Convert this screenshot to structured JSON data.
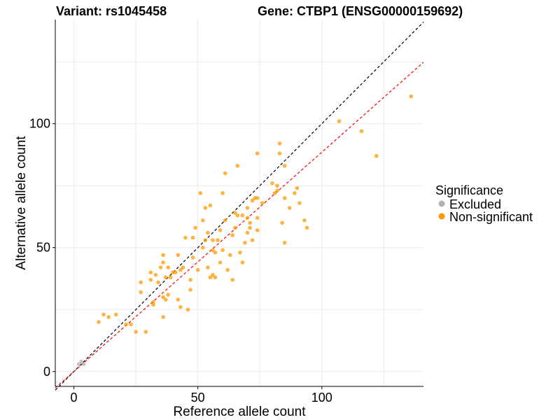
{
  "chart_data": {
    "type": "scatter",
    "title_left": "Variant: rs1045458",
    "title_right": "Gene: CTBP1 (ENSG00000159692)",
    "xlabel": "Reference allele count",
    "ylabel": "Alternative allele count",
    "xlim": [
      -7.5,
      141
    ],
    "ylim": [
      -6,
      142
    ],
    "x_ticks": [
      0,
      50,
      100
    ],
    "y_ticks": [
      0,
      50,
      100
    ],
    "grid": true,
    "legend": {
      "title": "Significance",
      "placement": "right",
      "entries": [
        {
          "label": "Excluded",
          "color": "#b3b3b3"
        },
        {
          "label": "Non-significant",
          "color": "#ff9900"
        }
      ]
    },
    "reference_lines": [
      {
        "name": "identity",
        "slope": 1.0,
        "intercept": 0,
        "color": "#000000",
        "dash": true
      },
      {
        "name": "fit",
        "slope": 0.885,
        "intercept": 0,
        "color": "#ff0000",
        "dash": true
      }
    ],
    "series": [
      {
        "name": "Excluded",
        "color": "#b3b3b3",
        "points": [
          [
            2,
            3
          ],
          [
            3,
            4
          ],
          [
            4,
            3
          ]
        ]
      },
      {
        "name": "Non-significant",
        "color": "#ff9900",
        "points": [
          [
            10,
            20
          ],
          [
            12,
            23
          ],
          [
            14,
            22
          ],
          [
            17,
            23
          ],
          [
            21,
            19
          ],
          [
            23,
            19
          ],
          [
            25,
            16
          ],
          [
            27,
            32
          ],
          [
            27,
            36
          ],
          [
            29,
            16
          ],
          [
            31,
            37
          ],
          [
            31,
            40
          ],
          [
            32,
            27
          ],
          [
            32,
            28
          ],
          [
            33,
            39
          ],
          [
            34,
            36
          ],
          [
            35,
            42
          ],
          [
            36,
            22
          ],
          [
            36,
            30
          ],
          [
            36,
            44
          ],
          [
            36,
            47
          ],
          [
            37,
            29
          ],
          [
            37,
            38
          ],
          [
            38,
            31
          ],
          [
            38,
            42
          ],
          [
            39,
            38
          ],
          [
            40,
            40
          ],
          [
            41,
            40
          ],
          [
            42,
            29
          ],
          [
            42,
            47
          ],
          [
            43,
            26
          ],
          [
            43,
            41
          ],
          [
            44,
            42
          ],
          [
            45,
            54
          ],
          [
            46,
            25
          ],
          [
            47,
            33
          ],
          [
            47,
            37
          ],
          [
            48,
            46
          ],
          [
            48,
            54
          ],
          [
            49,
            58
          ],
          [
            50,
            41
          ],
          [
            51,
            72
          ],
          [
            52,
            50
          ],
          [
            52,
            61
          ],
          [
            53,
            53
          ],
          [
            53,
            66
          ],
          [
            54,
            42
          ],
          [
            54,
            56
          ],
          [
            55,
            38
          ],
          [
            55,
            67
          ],
          [
            56,
            39
          ],
          [
            56,
            49
          ],
          [
            56,
            53
          ],
          [
            57,
            38
          ],
          [
            57,
            48
          ],
          [
            58,
            53
          ],
          [
            59,
            57
          ],
          [
            59,
            44
          ],
          [
            60,
            72
          ],
          [
            60,
            49
          ],
          [
            61,
            80
          ],
          [
            61,
            61
          ],
          [
            62,
            41
          ],
          [
            63,
            47
          ],
          [
            64,
            37
          ],
          [
            64,
            55
          ],
          [
            65,
            64
          ],
          [
            65,
            58
          ],
          [
            66,
            83
          ],
          [
            66,
            63
          ],
          [
            67,
            48
          ],
          [
            68,
            44
          ],
          [
            68,
            63
          ],
          [
            69,
            52
          ],
          [
            70,
            56
          ],
          [
            70,
            62
          ],
          [
            70,
            66
          ],
          [
            71,
            58
          ],
          [
            71,
            60
          ],
          [
            72,
            53
          ],
          [
            72,
            69
          ],
          [
            73,
            70
          ],
          [
            74,
            88
          ],
          [
            74,
            70
          ],
          [
            74,
            57
          ],
          [
            74,
            62
          ],
          [
            76,
            68
          ],
          [
            80,
            76
          ],
          [
            81,
            72
          ],
          [
            82,
            75
          ],
          [
            82,
            73
          ],
          [
            83,
            88
          ],
          [
            83,
            92
          ],
          [
            84,
            60
          ],
          [
            85,
            52
          ],
          [
            85,
            70
          ],
          [
            85,
            83
          ],
          [
            87,
            66
          ],
          [
            89,
            72
          ],
          [
            90,
            74
          ],
          [
            91,
            68
          ],
          [
            93,
            61
          ],
          [
            94,
            58
          ],
          [
            107,
            101
          ],
          [
            116,
            97
          ],
          [
            122,
            87
          ],
          [
            136,
            111
          ]
        ]
      }
    ]
  }
}
